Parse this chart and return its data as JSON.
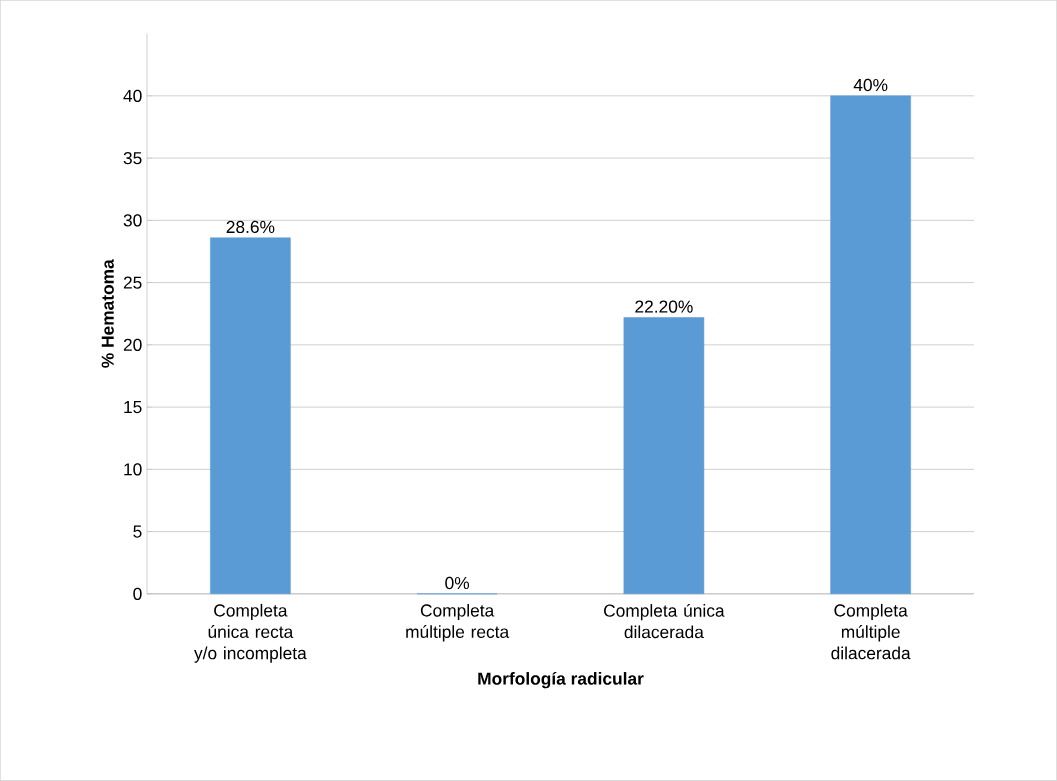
{
  "chart_data": {
    "type": "bar",
    "xlabel": "Morfología radicular",
    "ylabel": "% Hematoma",
    "categories": [
      "Completa única recta y/o incompleta",
      "Completa múltiple recta",
      "Completa única dilacerada",
      "Completa múltiple dilacerada"
    ],
    "values": [
      28.6,
      0,
      22.2,
      40
    ],
    "value_labels": [
      "28.6%",
      "0%",
      "22.20%",
      "40%"
    ],
    "color": "#5b9bd5",
    "ylim": [
      0,
      45
    ],
    "yticks": [
      0,
      5,
      10,
      15,
      20,
      25,
      30,
      35,
      40
    ],
    "grid": "y"
  }
}
